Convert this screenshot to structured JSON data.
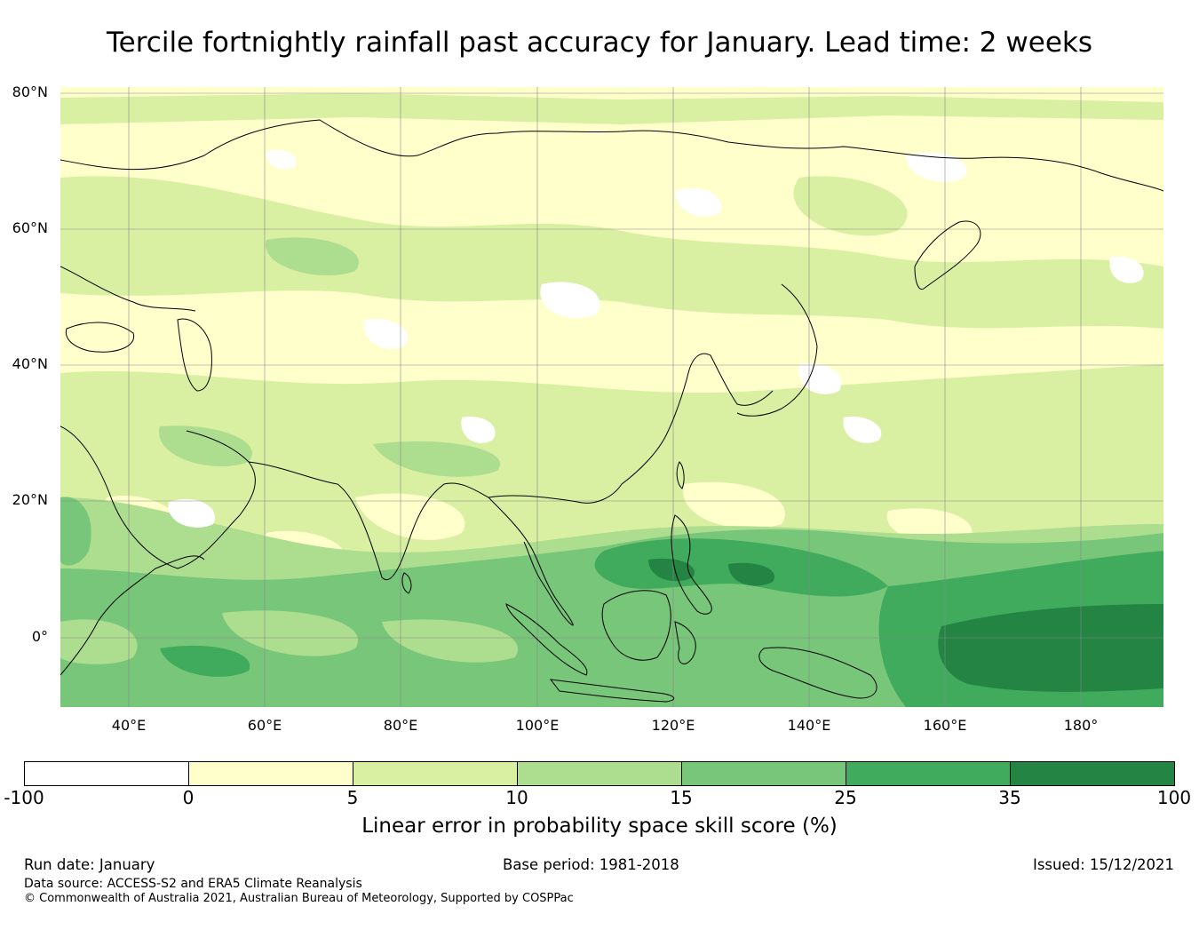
{
  "title": "Tercile fortnightly rainfall past accuracy for January. Lead time: 2 weeks",
  "map": {
    "lat_labels": [
      "80°N",
      "60°N",
      "40°N",
      "20°N",
      "0°"
    ],
    "lon_labels": [
      "40°E",
      "60°E",
      "80°E",
      "100°E",
      "120°E",
      "140°E",
      "160°E",
      "180°"
    ],
    "colors": {
      "below_0": "#ffffff",
      "0_5": "#ffffcc",
      "5_10": "#d9f0a3",
      "10_15": "#addd8e",
      "15_25": "#78c679",
      "25_35": "#41ab5d",
      "35_100": "#238443",
      "coastline": "#000000",
      "grid": "#888888"
    }
  },
  "colorbar": {
    "ticks": [
      "-100",
      "0",
      "5",
      "10",
      "15",
      "25",
      "35",
      "100"
    ],
    "colors": [
      "#ffffff",
      "#ffffcc",
      "#d9f0a3",
      "#addd8e",
      "#78c679",
      "#41ab5d",
      "#238443"
    ],
    "label": "Linear error in probability space skill score (%)"
  },
  "footer": {
    "run_date": "Run date: January",
    "base_period": "Base period: 1981-2018",
    "issued": "Issued: 15/12/2021",
    "data_source": "Data source: ACCESS-S2 and ERA5 Climate Reanalysis",
    "copyright": "© Commonwealth of Australia 2021, Australian Bureau of Meteorology, Supported by COSPPac"
  }
}
